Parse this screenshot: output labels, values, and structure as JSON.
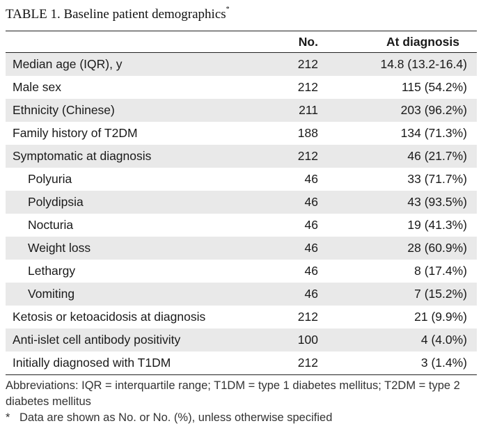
{
  "table": {
    "title": "TABLE 1. Baseline patient demographics",
    "title_marker": "*",
    "headers": {
      "label": "",
      "n": "No.",
      "value": "At diagnosis"
    },
    "rows": [
      {
        "label": "Median age (IQR), y",
        "n": "212",
        "value": "14.8 (13.2-16.4)",
        "shaded": true,
        "indent": false
      },
      {
        "label": "Male sex",
        "n": "212",
        "value": "115 (54.2%)",
        "shaded": false,
        "indent": false
      },
      {
        "label": "Ethnicity (Chinese)",
        "n": "211",
        "value": "203 (96.2%)",
        "shaded": true,
        "indent": false
      },
      {
        "label": "Family history of T2DM",
        "n": "188",
        "value": "134 (71.3%)",
        "shaded": false,
        "indent": false
      },
      {
        "label": "Symptomatic at diagnosis",
        "n": "212",
        "value": "46 (21.7%)",
        "shaded": true,
        "indent": false
      },
      {
        "label": "Polyuria",
        "n": "46",
        "value": "33 (71.7%)",
        "shaded": false,
        "indent": true
      },
      {
        "label": "Polydipsia",
        "n": "46",
        "value": "43 (93.5%)",
        "shaded": true,
        "indent": true
      },
      {
        "label": "Nocturia",
        "n": "46",
        "value": "19 (41.3%)",
        "shaded": false,
        "indent": true
      },
      {
        "label": "Weight loss",
        "n": "46",
        "value": "28 (60.9%)",
        "shaded": true,
        "indent": true
      },
      {
        "label": "Lethargy",
        "n": "46",
        "value": "8 (17.4%)",
        "shaded": false,
        "indent": true
      },
      {
        "label": "Vomiting",
        "n": "46",
        "value": "7 (15.2%)",
        "shaded": true,
        "indent": true
      },
      {
        "label": "Ketosis or ketoacidosis at diagnosis",
        "n": "212",
        "value": "21 (9.9%)",
        "shaded": false,
        "indent": false
      },
      {
        "label": "Anti-islet cell antibody positivity",
        "n": "100",
        "value": "4 (4.0%)",
        "shaded": true,
        "indent": false
      },
      {
        "label": "Initially diagnosed with T1DM",
        "n": "212",
        "value": "3 (1.4%)",
        "shaded": false,
        "indent": false
      }
    ],
    "footnote_abbreviations": "Abbreviations: IQR = interquartile range; T1DM = type 1 diabetes mellitus; T2DM = type 2 diabetes mellitus",
    "footnote_marker": "*",
    "footnote_data": "Data are shown as No. or No. (%), unless otherwise specified"
  },
  "colors": {
    "shade": "#e9e9e9",
    "rule": "#222222"
  }
}
